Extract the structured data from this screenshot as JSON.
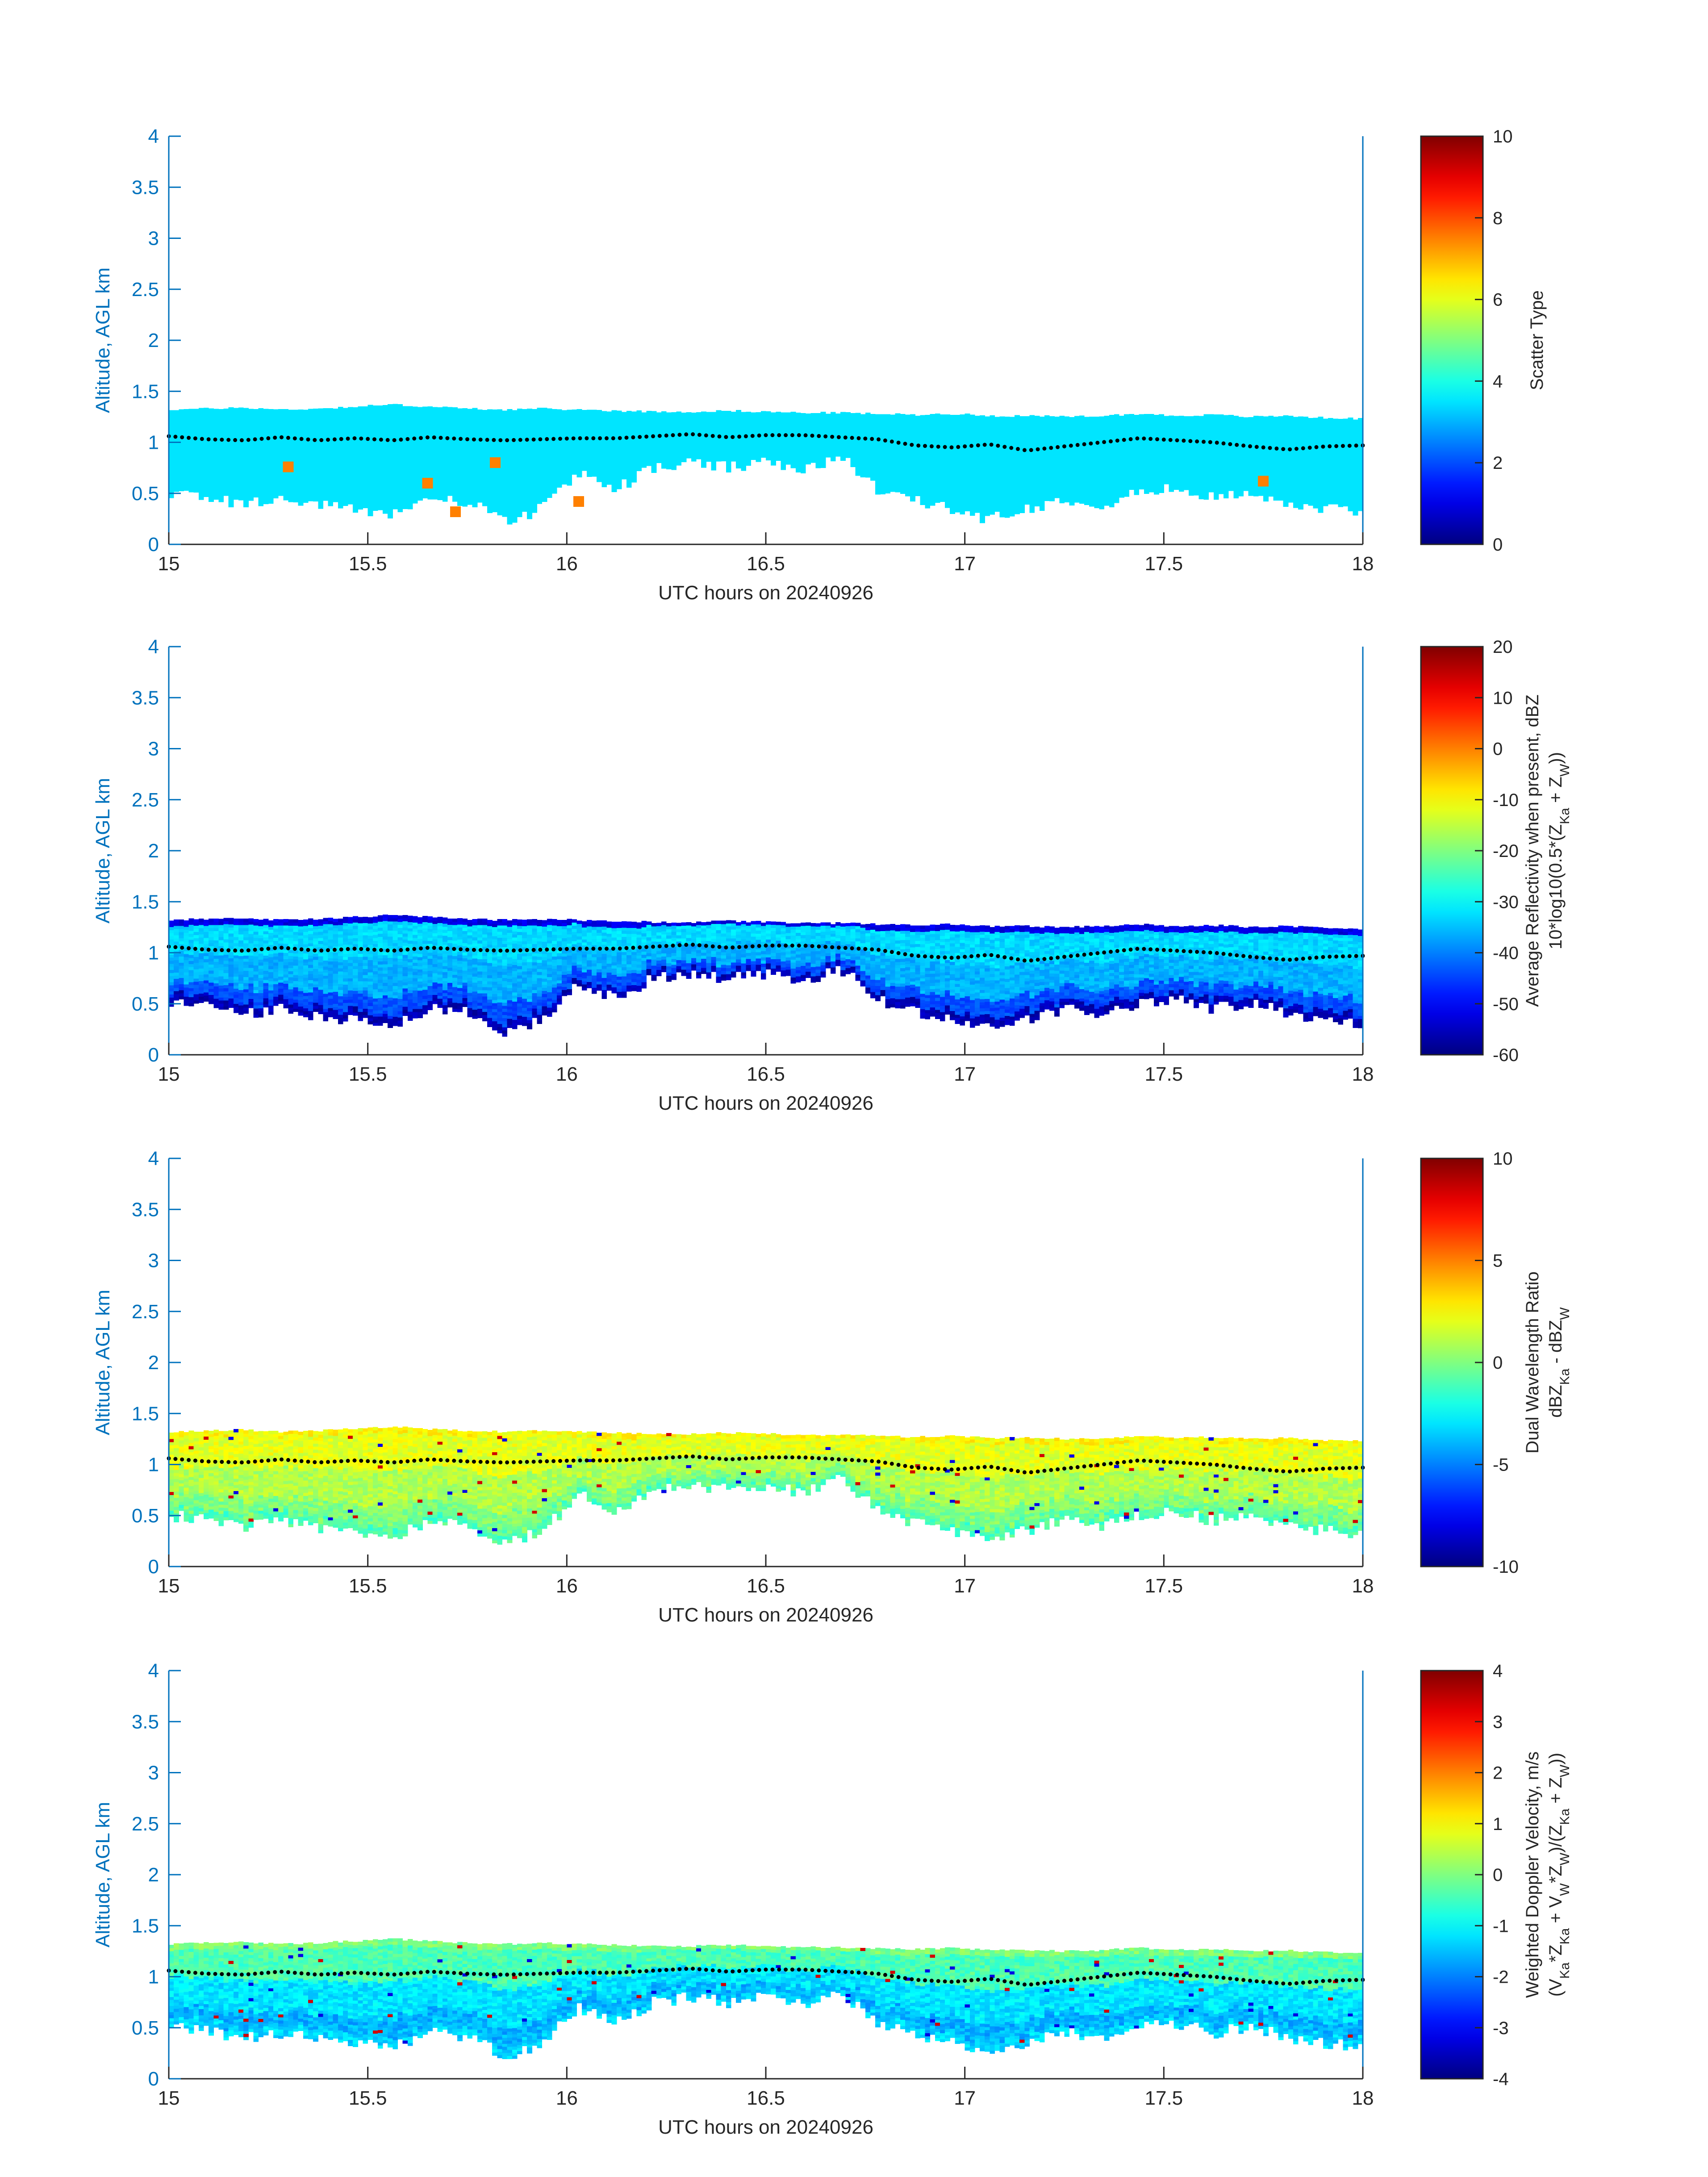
{
  "figure": {
    "xlabel": "UTC hours on 20240926",
    "ylabel": "Altitude, AGL km",
    "x_ticks": [
      "15",
      "15.5",
      "16",
      "16.5",
      "17",
      "17.5",
      "18"
    ],
    "y_ticks": [
      "0",
      "0.5",
      "1",
      "1.5",
      "2",
      "2.5",
      "3",
      "3.5",
      "4"
    ],
    "axis_color": "#0072BD",
    "colormap": "jet"
  },
  "chart_data": [
    {
      "type": "heatmap",
      "panel": 1,
      "xlabel": "UTC hours on 20240926",
      "ylabel": "Altitude, AGL km",
      "xlim": [
        15,
        18
      ],
      "ylim": [
        0,
        4
      ],
      "colorbar": {
        "label": [
          "Scatter Type"
        ],
        "clim": [
          0,
          10
        ],
        "ticks": [
          "0",
          "2",
          "4",
          "6",
          "8",
          "10"
        ]
      },
      "cloud_top_km": [
        1.32,
        1.33,
        1.34,
        1.32,
        1.33,
        1.35,
        1.37,
        1.35,
        1.33,
        1.32,
        1.33,
        1.32,
        1.31,
        1.3,
        1.3,
        1.31,
        1.3,
        1.29,
        1.29,
        1.28,
        1.27,
        1.28,
        1.26,
        1.26,
        1.25,
        1.26,
        1.28,
        1.26,
        1.27,
        1.25,
        1.26,
        1.24,
        1.23
      ],
      "cloud_base_km": [
        0.5,
        0.47,
        0.4,
        0.45,
        0.38,
        0.35,
        0.3,
        0.45,
        0.42,
        0.22,
        0.35,
        0.7,
        0.55,
        0.75,
        0.8,
        0.75,
        0.8,
        0.72,
        0.85,
        0.55,
        0.42,
        0.35,
        0.25,
        0.35,
        0.45,
        0.4,
        0.5,
        0.55,
        0.45,
        0.52,
        0.4,
        0.35,
        0.3
      ],
      "layer_line_km": [
        1.06,
        1.03,
        1.02,
        1.05,
        1.02,
        1.04,
        1.02,
        1.05,
        1.03,
        1.02,
        1.03,
        1.04,
        1.04,
        1.06,
        1.08,
        1.05,
        1.07,
        1.07,
        1.05,
        1.03,
        0.97,
        0.95,
        0.98,
        0.92,
        0.96,
        1.0,
        1.04,
        1.02,
        1.0,
        0.96,
        0.93,
        0.96,
        0.97
      ],
      "cloud_value": 3.5,
      "outliers": [
        [
          15.3,
          0.76,
          7.5
        ],
        [
          15.65,
          0.6,
          7.5
        ],
        [
          15.72,
          0.32,
          7.5
        ],
        [
          15.82,
          0.8,
          7.5
        ],
        [
          16.03,
          0.42,
          7.5
        ],
        [
          17.75,
          0.62,
          7.5
        ]
      ]
    },
    {
      "type": "heatmap",
      "panel": 2,
      "xlabel": "UTC hours on 20240926",
      "ylabel": "Altitude, AGL km",
      "xlim": [
        15,
        18
      ],
      "ylim": [
        0,
        4
      ],
      "colorbar": {
        "label": [
          "Average Reflectivity when present, dBZ",
          "10*log10(0.5*(Z",
          "Ka",
          " + Z",
          "W",
          "))"
        ],
        "clim": [
          -60,
          20
        ],
        "ticks": [
          "-60",
          "-50",
          "-40",
          "-30",
          "-20",
          "-10",
          "0",
          "10",
          "20"
        ]
      },
      "value_profile": {
        "top": -52,
        "upper": -33,
        "mid": -36,
        "lower": -44,
        "base": -56
      }
    },
    {
      "type": "heatmap",
      "panel": 3,
      "xlabel": "UTC hours on 20240926",
      "ylabel": "Altitude, AGL km",
      "xlim": [
        15,
        18
      ],
      "ylim": [
        0,
        4
      ],
      "colorbar": {
        "label": [
          "Dual Wavelength Ratio",
          "dBZ",
          "Ka",
          " - dBZ",
          "W"
        ],
        "clim": [
          -10,
          10
        ],
        "ticks": [
          "-10",
          "-5",
          "0",
          "5",
          "10"
        ]
      },
      "value_profile": {
        "top": 2.5,
        "upper": 2.0,
        "mid": 1.0,
        "lower": 0.0,
        "base": -1.0
      }
    },
    {
      "type": "heatmap",
      "panel": 4,
      "xlabel": "UTC hours on 20240926",
      "ylabel": "Altitude, AGL km",
      "xlim": [
        15,
        18
      ],
      "ylim": [
        0,
        4
      ],
      "colorbar": {
        "label": [
          "Weighted Doppler Velocity, m/s",
          "(V",
          "Ka",
          "*Z",
          "Ka",
          " + V",
          "W",
          "*Z",
          "W",
          ")/(Z",
          "Ka",
          " + Z",
          "W",
          "))"
        ],
        "clim": [
          -4,
          4
        ],
        "ticks": [
          "-4",
          "-3",
          "-2",
          "-1",
          "0",
          "1",
          "2",
          "3",
          "4"
        ]
      },
      "value_profile": {
        "top": 0.0,
        "upper": -0.4,
        "mid": -1.2,
        "lower": -1.6,
        "base": -1.3
      }
    }
  ]
}
